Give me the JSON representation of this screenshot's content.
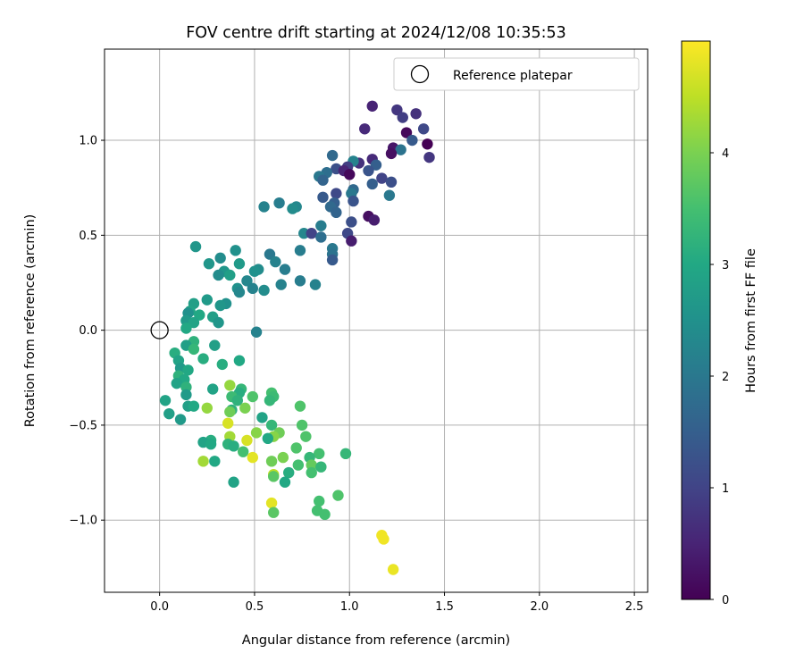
{
  "chart_data": {
    "type": "scatter",
    "title": "FOV centre drift starting at 2024/12/08 10:35:53",
    "xlabel": "Angular distance from reference (arcmin)",
    "ylabel": "Rotation from reference (arcmin)",
    "xlim": [
      -0.29,
      2.57
    ],
    "ylim": [
      -1.38,
      1.48
    ],
    "xticks": [
      0.0,
      0.5,
      1.0,
      1.5,
      2.0,
      2.5
    ],
    "xtick_labels": [
      "0.0",
      "0.5",
      "1.0",
      "1.5",
      "2.0",
      "2.5"
    ],
    "yticks": [
      1.0,
      0.5,
      0.0,
      -0.5,
      -1.0
    ],
    "ytick_labels": [
      "1.0",
      "0.5",
      "0.0",
      "−0.5",
      "−1.0"
    ],
    "grid": true,
    "legend": {
      "label": "Reference platepar",
      "location": "top-right",
      "marker": "open-circle"
    },
    "reference_point": {
      "x": 0.0,
      "y": 0.0
    },
    "colorbar": {
      "label": "Hours from first FF file",
      "colormap": "viridis",
      "range": [
        0,
        5.0
      ],
      "ticks": [
        0,
        1,
        2,
        3,
        4
      ],
      "tick_labels": [
        "0",
        "1",
        "2",
        "3",
        "4"
      ]
    },
    "points": [
      {
        "x": 1.12,
        "y": 1.18,
        "h": 0.5
      },
      {
        "x": 1.25,
        "y": 1.16,
        "h": 0.8
      },
      {
        "x": 1.35,
        "y": 1.14,
        "h": 0.7
      },
      {
        "x": 1.28,
        "y": 1.12,
        "h": 0.9
      },
      {
        "x": 1.39,
        "y": 1.06,
        "h": 1.1
      },
      {
        "x": 1.3,
        "y": 1.04,
        "h": 0.1
      },
      {
        "x": 1.08,
        "y": 1.06,
        "h": 0.6
      },
      {
        "x": 1.33,
        "y": 1.0,
        "h": 1.4
      },
      {
        "x": 1.41,
        "y": 0.98,
        "h": 0.0
      },
      {
        "x": 1.23,
        "y": 0.96,
        "h": 0.3
      },
      {
        "x": 1.27,
        "y": 0.95,
        "h": 1.9
      },
      {
        "x": 1.22,
        "y": 0.93,
        "h": 0.2
      },
      {
        "x": 1.42,
        "y": 0.91,
        "h": 0.8
      },
      {
        "x": 0.91,
        "y": 0.92,
        "h": 1.7
      },
      {
        "x": 1.05,
        "y": 0.88,
        "h": 0.7
      },
      {
        "x": 1.02,
        "y": 0.89,
        "h": 2.2
      },
      {
        "x": 1.12,
        "y": 0.9,
        "h": 0.6
      },
      {
        "x": 1.14,
        "y": 0.87,
        "h": 1.5
      },
      {
        "x": 0.99,
        "y": 0.86,
        "h": 0.9
      },
      {
        "x": 0.93,
        "y": 0.85,
        "h": 1.2
      },
      {
        "x": 0.97,
        "y": 0.84,
        "h": 0.5
      },
      {
        "x": 1.1,
        "y": 0.84,
        "h": 1.3
      },
      {
        "x": 0.88,
        "y": 0.83,
        "h": 1.8
      },
      {
        "x": 0.84,
        "y": 0.81,
        "h": 2.0
      },
      {
        "x": 1.0,
        "y": 0.82,
        "h": 0.1
      },
      {
        "x": 0.86,
        "y": 0.79,
        "h": 1.6
      },
      {
        "x": 1.17,
        "y": 0.8,
        "h": 1.0
      },
      {
        "x": 1.22,
        "y": 0.78,
        "h": 1.2
      },
      {
        "x": 1.12,
        "y": 0.77,
        "h": 1.5
      },
      {
        "x": 1.02,
        "y": 0.74,
        "h": 1.7
      },
      {
        "x": 0.93,
        "y": 0.72,
        "h": 1.1
      },
      {
        "x": 1.01,
        "y": 0.72,
        "h": 2.0
      },
      {
        "x": 1.21,
        "y": 0.71,
        "h": 2.0
      },
      {
        "x": 0.86,
        "y": 0.7,
        "h": 1.4
      },
      {
        "x": 0.92,
        "y": 0.67,
        "h": 1.5
      },
      {
        "x": 1.02,
        "y": 0.68,
        "h": 1.3
      },
      {
        "x": 0.63,
        "y": 0.67,
        "h": 2.1
      },
      {
        "x": 0.72,
        "y": 0.65,
        "h": 2.3
      },
      {
        "x": 0.55,
        "y": 0.65,
        "h": 2.2
      },
      {
        "x": 0.7,
        "y": 0.64,
        "h": 2.4
      },
      {
        "x": 0.9,
        "y": 0.65,
        "h": 1.7
      },
      {
        "x": 0.93,
        "y": 0.62,
        "h": 1.6
      },
      {
        "x": 1.1,
        "y": 0.6,
        "h": 0.2
      },
      {
        "x": 1.13,
        "y": 0.58,
        "h": 0.4
      },
      {
        "x": 1.01,
        "y": 0.57,
        "h": 1.2
      },
      {
        "x": 0.85,
        "y": 0.55,
        "h": 2.1
      },
      {
        "x": 0.76,
        "y": 0.51,
        "h": 2.3
      },
      {
        "x": 0.8,
        "y": 0.51,
        "h": 1.0
      },
      {
        "x": 0.85,
        "y": 0.49,
        "h": 1.8
      },
      {
        "x": 0.99,
        "y": 0.51,
        "h": 1.1
      },
      {
        "x": 1.01,
        "y": 0.47,
        "h": 0.4
      },
      {
        "x": 0.91,
        "y": 0.43,
        "h": 2.0
      },
      {
        "x": 0.19,
        "y": 0.44,
        "h": 2.6
      },
      {
        "x": 0.4,
        "y": 0.42,
        "h": 2.5
      },
      {
        "x": 0.74,
        "y": 0.42,
        "h": 2.1
      },
      {
        "x": 0.91,
        "y": 0.4,
        "h": 1.9
      },
      {
        "x": 0.58,
        "y": 0.4,
        "h": 2.0
      },
      {
        "x": 0.32,
        "y": 0.38,
        "h": 2.4
      },
      {
        "x": 0.26,
        "y": 0.35,
        "h": 2.6
      },
      {
        "x": 0.42,
        "y": 0.35,
        "h": 2.7
      },
      {
        "x": 0.61,
        "y": 0.36,
        "h": 2.2
      },
      {
        "x": 0.91,
        "y": 0.37,
        "h": 1.4
      },
      {
        "x": 0.52,
        "y": 0.32,
        "h": 2.4
      },
      {
        "x": 0.66,
        "y": 0.32,
        "h": 2.1
      },
      {
        "x": 0.5,
        "y": 0.31,
        "h": 2.5
      },
      {
        "x": 0.34,
        "y": 0.31,
        "h": 2.6
      },
      {
        "x": 0.31,
        "y": 0.29,
        "h": 2.4
      },
      {
        "x": 0.37,
        "y": 0.29,
        "h": 2.8
      },
      {
        "x": 0.46,
        "y": 0.26,
        "h": 2.3
      },
      {
        "x": 0.74,
        "y": 0.26,
        "h": 2.1
      },
      {
        "x": 0.82,
        "y": 0.24,
        "h": 2.2
      },
      {
        "x": 0.64,
        "y": 0.24,
        "h": 2.2
      },
      {
        "x": 0.41,
        "y": 0.22,
        "h": 2.5
      },
      {
        "x": 0.49,
        "y": 0.22,
        "h": 2.2
      },
      {
        "x": 0.55,
        "y": 0.21,
        "h": 2.4
      },
      {
        "x": 0.42,
        "y": 0.2,
        "h": 2.3
      },
      {
        "x": 0.25,
        "y": 0.16,
        "h": 2.7
      },
      {
        "x": 0.35,
        "y": 0.14,
        "h": 2.5
      },
      {
        "x": 0.18,
        "y": 0.14,
        "h": 2.8
      },
      {
        "x": 0.32,
        "y": 0.13,
        "h": 2.6
      },
      {
        "x": 0.16,
        "y": 0.1,
        "h": 2.9
      },
      {
        "x": 0.15,
        "y": 0.09,
        "h": 2.5
      },
      {
        "x": 0.21,
        "y": 0.08,
        "h": 3.0
      },
      {
        "x": 0.28,
        "y": 0.07,
        "h": 2.8
      },
      {
        "x": 0.14,
        "y": 0.05,
        "h": 2.7
      },
      {
        "x": 0.18,
        "y": 0.04,
        "h": 2.9
      },
      {
        "x": 0.31,
        "y": 0.04,
        "h": 2.6
      },
      {
        "x": 0.14,
        "y": 0.01,
        "h": 3.0
      },
      {
        "x": 0.51,
        "y": -0.01,
        "h": 2.2
      },
      {
        "x": 0.18,
        "y": -0.06,
        "h": 3.2
      },
      {
        "x": 0.14,
        "y": -0.08,
        "h": 2.8
      },
      {
        "x": 0.29,
        "y": -0.08,
        "h": 2.8
      },
      {
        "x": 0.18,
        "y": -0.1,
        "h": 3.3
      },
      {
        "x": 0.08,
        "y": -0.12,
        "h": 3.1
      },
      {
        "x": 0.23,
        "y": -0.15,
        "h": 3.1
      },
      {
        "x": 0.1,
        "y": -0.16,
        "h": 2.9
      },
      {
        "x": 0.42,
        "y": -0.16,
        "h": 3.0
      },
      {
        "x": 0.33,
        "y": -0.18,
        "h": 3.1
      },
      {
        "x": 0.11,
        "y": -0.2,
        "h": 2.7
      },
      {
        "x": 0.15,
        "y": -0.21,
        "h": 3.0
      },
      {
        "x": 0.1,
        "y": -0.24,
        "h": 3.2
      },
      {
        "x": 0.13,
        "y": -0.26,
        "h": 3.0
      },
      {
        "x": 0.09,
        "y": -0.28,
        "h": 2.9
      },
      {
        "x": 0.14,
        "y": -0.3,
        "h": 3.2
      },
      {
        "x": 0.37,
        "y": -0.29,
        "h": 4.2
      },
      {
        "x": 0.28,
        "y": -0.31,
        "h": 2.9
      },
      {
        "x": 0.43,
        "y": -0.31,
        "h": 3.3
      },
      {
        "x": 0.42,
        "y": -0.33,
        "h": 3.1
      },
      {
        "x": 0.14,
        "y": -0.34,
        "h": 2.7
      },
      {
        "x": 0.59,
        "y": -0.33,
        "h": 3.5
      },
      {
        "x": 0.6,
        "y": -0.35,
        "h": 3.4
      },
      {
        "x": 0.49,
        "y": -0.35,
        "h": 3.6
      },
      {
        "x": 0.38,
        "y": -0.35,
        "h": 3.4
      },
      {
        "x": 0.03,
        "y": -0.37,
        "h": 2.9
      },
      {
        "x": 0.41,
        "y": -0.37,
        "h": 3.2
      },
      {
        "x": 0.58,
        "y": -0.37,
        "h": 3.3
      },
      {
        "x": 0.15,
        "y": -0.4,
        "h": 2.8
      },
      {
        "x": 0.18,
        "y": -0.4,
        "h": 3.0
      },
      {
        "x": 0.25,
        "y": -0.41,
        "h": 4.2
      },
      {
        "x": 0.45,
        "y": -0.41,
        "h": 4.0
      },
      {
        "x": 0.38,
        "y": -0.42,
        "h": 3.2
      },
      {
        "x": 0.37,
        "y": -0.43,
        "h": 3.9
      },
      {
        "x": 0.74,
        "y": -0.4,
        "h": 3.6
      },
      {
        "x": 0.05,
        "y": -0.44,
        "h": 2.8
      },
      {
        "x": 0.54,
        "y": -0.46,
        "h": 2.9
      },
      {
        "x": 0.11,
        "y": -0.47,
        "h": 2.7
      },
      {
        "x": 0.59,
        "y": -0.5,
        "h": 3.3
      },
      {
        "x": 0.36,
        "y": -0.49,
        "h": 4.7
      },
      {
        "x": 0.75,
        "y": -0.5,
        "h": 3.6
      },
      {
        "x": 0.51,
        "y": -0.54,
        "h": 4.1
      },
      {
        "x": 0.63,
        "y": -0.54,
        "h": 3.9
      },
      {
        "x": 0.6,
        "y": -0.56,
        "h": 4.1
      },
      {
        "x": 0.37,
        "y": -0.56,
        "h": 4.3
      },
      {
        "x": 0.57,
        "y": -0.57,
        "h": 3.0
      },
      {
        "x": 0.46,
        "y": -0.58,
        "h": 4.7
      },
      {
        "x": 0.77,
        "y": -0.56,
        "h": 3.6
      },
      {
        "x": 0.27,
        "y": -0.58,
        "h": 3.1
      },
      {
        "x": 0.23,
        "y": -0.59,
        "h": 2.9
      },
      {
        "x": 0.27,
        "y": -0.6,
        "h": 3.0
      },
      {
        "x": 0.36,
        "y": -0.6,
        "h": 3.2
      },
      {
        "x": 0.39,
        "y": -0.61,
        "h": 3.1
      },
      {
        "x": 0.72,
        "y": -0.62,
        "h": 3.6
      },
      {
        "x": 0.44,
        "y": -0.64,
        "h": 3.5
      },
      {
        "x": 0.84,
        "y": -0.65,
        "h": 3.5
      },
      {
        "x": 0.98,
        "y": -0.65,
        "h": 3.3
      },
      {
        "x": 0.49,
        "y": -0.67,
        "h": 4.8
      },
      {
        "x": 0.65,
        "y": -0.67,
        "h": 4.0
      },
      {
        "x": 0.79,
        "y": -0.67,
        "h": 3.3
      },
      {
        "x": 0.59,
        "y": -0.69,
        "h": 3.9
      },
      {
        "x": 0.23,
        "y": -0.69,
        "h": 4.3
      },
      {
        "x": 0.29,
        "y": -0.69,
        "h": 3.0
      },
      {
        "x": 0.8,
        "y": -0.71,
        "h": 3.8
      },
      {
        "x": 0.73,
        "y": -0.71,
        "h": 3.5
      },
      {
        "x": 0.85,
        "y": -0.72,
        "h": 3.3
      },
      {
        "x": 0.68,
        "y": -0.75,
        "h": 3.1
      },
      {
        "x": 0.8,
        "y": -0.75,
        "h": 3.5
      },
      {
        "x": 0.6,
        "y": -0.76,
        "h": 4.5
      },
      {
        "x": 0.6,
        "y": -0.77,
        "h": 3.7
      },
      {
        "x": 0.39,
        "y": -0.8,
        "h": 2.9
      },
      {
        "x": 0.66,
        "y": -0.8,
        "h": 3.0
      },
      {
        "x": 0.94,
        "y": -0.87,
        "h": 3.6
      },
      {
        "x": 0.84,
        "y": -0.9,
        "h": 3.5
      },
      {
        "x": 0.59,
        "y": -0.91,
        "h": 4.8
      },
      {
        "x": 0.83,
        "y": -0.95,
        "h": 3.5
      },
      {
        "x": 0.6,
        "y": -0.96,
        "h": 3.7
      },
      {
        "x": 0.87,
        "y": -0.97,
        "h": 3.5
      },
      {
        "x": 1.17,
        "y": -1.08,
        "h": 4.9
      },
      {
        "x": 1.18,
        "y": -1.1,
        "h": 4.9
      },
      {
        "x": 1.23,
        "y": -1.26,
        "h": 4.85
      }
    ]
  }
}
